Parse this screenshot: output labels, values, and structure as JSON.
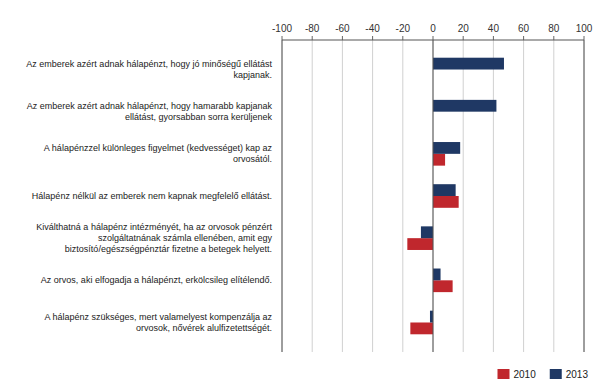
{
  "chart_data": {
    "type": "bar",
    "orientation": "horizontal",
    "categories": [
      "Az emberek azért adnak hálapénzt, hogy jó minőségű ellátást\nkapjanak.",
      "Az emberek azért adnak hálapénzt, hogy hamarabb kapjanak\nellátást, gyorsabban sorra kerüljenek",
      "A hálapénzzel különleges figyelmet (kedvességet) kap az\norvosától.",
      "Hálapénz nélkül az emberek nem kapnak megfelelő ellátást.",
      "Kiválthatná a hálapénz intézményét, ha az orvosok pénzért\nszolgáltatnának számla ellenében, amit egy\nbiztosító/egészségpénztár fizetne a betegek helyett.",
      "Az orvos, aki elfogadja a hálapénzt, erkölcsileg elítélendő.",
      "A hálapénz szükséges, mert valamelyest kompenzálja az\norvosok, nővérek alulfizetettségét."
    ],
    "series": [
      {
        "name": "2010",
        "color": "#C0272D",
        "values": [
          0,
          0,
          8,
          17,
          -17,
          13,
          -15
        ]
      },
      {
        "name": "2013",
        "color": "#1F3864",
        "values": [
          47,
          42,
          18,
          15,
          -8,
          5,
          -2
        ]
      }
    ],
    "xlim": [
      -100,
      100
    ],
    "xticks": [
      -100,
      -80,
      -60,
      -40,
      -20,
      0,
      20,
      40,
      60,
      80,
      100
    ],
    "grid": true,
    "legend": "lower right"
  }
}
